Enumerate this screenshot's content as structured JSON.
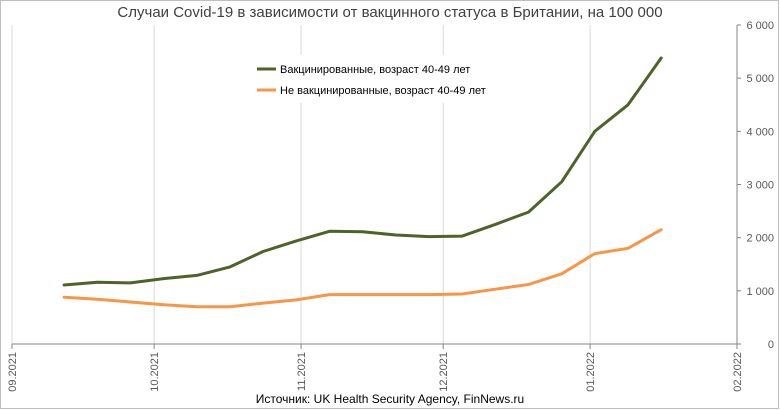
{
  "chart_data": {
    "type": "line",
    "title": "Случаи Covid-19 в зависимости от вакцинного статуса в Британии, на 100 000",
    "source": "Источник: UK Health Security Agency, FinNews.ru",
    "x_tick_labels": [
      "09.2021",
      "10.2021",
      "11.2021",
      "12.2021",
      "01.2022",
      "02.2022"
    ],
    "y_tick_labels": [
      "0",
      "1 000",
      "2 000",
      "3 000",
      "4 000",
      "5 000",
      "6 000"
    ],
    "ylim": [
      0,
      6000
    ],
    "xlim_days": [
      0,
      153
    ],
    "y_axis_position": "right",
    "grid": "vertical",
    "legend_position": "top-center",
    "series": [
      {
        "name": "Вакцинированные, возраст 40-49 лет",
        "color": "#4f6228",
        "x_days": [
          11,
          18,
          25,
          32,
          39,
          46,
          53,
          60,
          67,
          74,
          81,
          88,
          95,
          102,
          109,
          116,
          123,
          130,
          137
        ],
        "values": [
          1110,
          1160,
          1150,
          1230,
          1290,
          1450,
          1740,
          1940,
          2120,
          2110,
          2050,
          2020,
          2030,
          2250,
          2480,
          3050,
          4000,
          4500,
          5380
        ]
      },
      {
        "name": "Не вакцинированные, возраст 40-49 лет",
        "color": "#f79646",
        "x_days": [
          11,
          18,
          25,
          32,
          39,
          46,
          53,
          60,
          67,
          74,
          81,
          88,
          95,
          102,
          109,
          116,
          123,
          130,
          137
        ],
        "values": [
          880,
          840,
          790,
          740,
          700,
          700,
          770,
          830,
          930,
          930,
          930,
          930,
          940,
          1030,
          1120,
          1320,
          1700,
          1800,
          2150
        ]
      }
    ]
  }
}
